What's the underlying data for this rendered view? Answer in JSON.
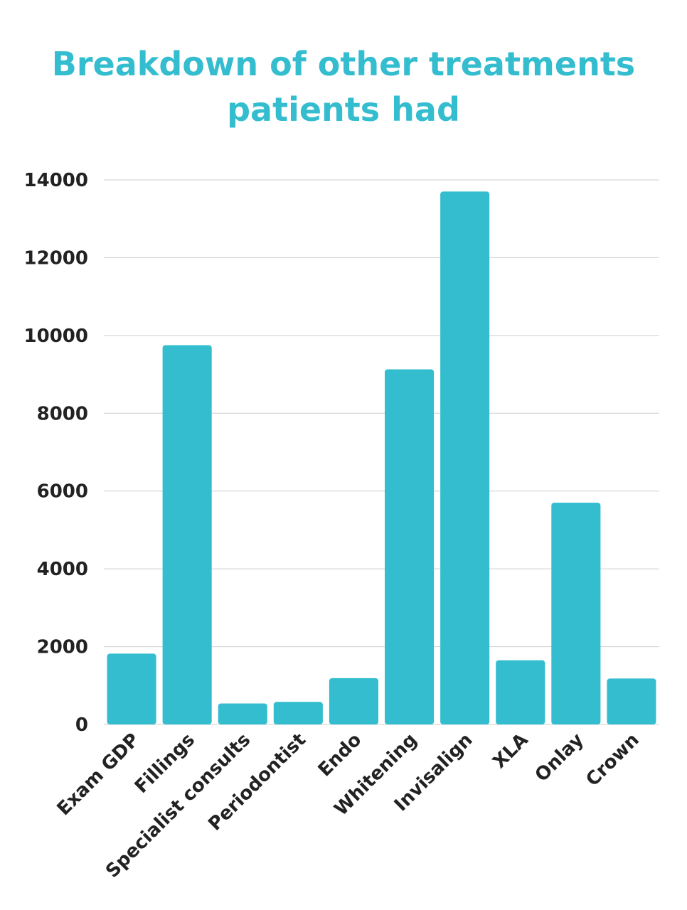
{
  "chart_data": {
    "type": "bar",
    "title_lines": [
      "Breakdown of other treatments",
      "patients had"
    ],
    "categories": [
      "Exam GDP",
      "Fillings",
      "Specialist consults",
      "Periodontist",
      "Endo",
      "Whitening",
      "Invisalign",
      "XLA",
      "Onlay",
      "Crown"
    ],
    "values": [
      1820,
      9750,
      540,
      580,
      1190,
      9130,
      13700,
      1650,
      5700,
      1180
    ],
    "y_ticks": [
      0,
      2000,
      4000,
      6000,
      8000,
      10000,
      12000,
      14000
    ],
    "ylim": [
      0,
      14000
    ],
    "grid": true,
    "bar_color": "#33bdcf",
    "xlabel": "",
    "ylabel": ""
  }
}
